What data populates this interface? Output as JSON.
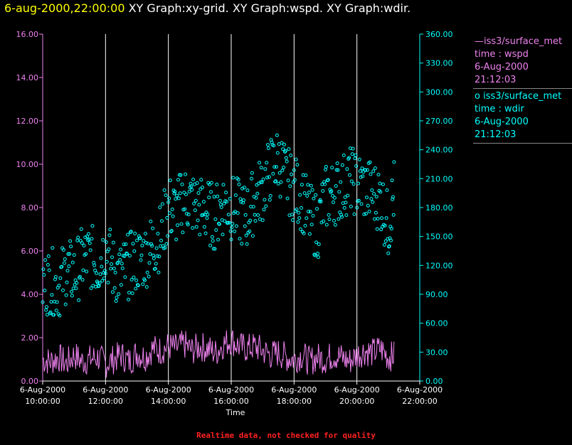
{
  "header": {
    "timestamp": "6-aug-2000,22:00:00",
    "graphs": "XY Graph:xy-grid.  XY Graph:wspd.  XY Graph:wdir."
  },
  "colors": {
    "wspd": "#ee82ee",
    "wdir": "#00ffff",
    "grid": "#ffffff",
    "background": "#000000",
    "title_time": "#ffff00",
    "warning": "#ff2020"
  },
  "legend": {
    "wspd": {
      "symbol": "—",
      "source": "iss3/surface_met",
      "var": "time : wspd",
      "date": "6-Aug-2000",
      "time": "21:12:03"
    },
    "wdir": {
      "symbol": "o",
      "source": "iss3/surface_met",
      "var": "time : wdir",
      "date": "6-Aug-2000",
      "time": "21:12:03"
    }
  },
  "warning": "Realtime data, not checked for quality",
  "chart_data": {
    "type": "line",
    "xlabel": "Time",
    "x_ticks": [
      {
        "date": "6-Aug-2000",
        "time": "10:00:00",
        "hour": 10
      },
      {
        "date": "6-Aug-2000",
        "time": "12:00:00",
        "hour": 12
      },
      {
        "date": "6-Aug-2000",
        "time": "14:00:00",
        "hour": 14
      },
      {
        "date": "6-Aug-2000",
        "time": "16:00:00",
        "hour": 16
      },
      {
        "date": "6-Aug-2000",
        "time": "18:00:00",
        "hour": 18
      },
      {
        "date": "6-Aug-2000",
        "time": "20:00:00",
        "hour": 20
      },
      {
        "date": "6-Aug-2000",
        "time": "22:00:00",
        "hour": 22
      }
    ],
    "xlim": [
      10,
      22
    ],
    "y_left": {
      "lim": [
        0,
        16
      ],
      "ticks": [
        "0.00",
        "2.00",
        "4.00",
        "6.00",
        "8.00",
        "10.00",
        "12.00",
        "14.00",
        "16.00"
      ]
    },
    "y_right": {
      "lim": [
        0,
        360
      ],
      "ticks": [
        "0.00",
        "30.00",
        "60.00",
        "90.00",
        "120.00",
        "150.00",
        "180.00",
        "210.00",
        "240.00",
        "270.00",
        "300.00",
        "330.00",
        "360.00"
      ]
    },
    "grid": "vertical",
    "series": [
      {
        "name": "iss3/surface_met time : wspd",
        "axis": "left",
        "style": "line",
        "x": [
          10.0,
          10.25,
          10.5,
          10.75,
          11.0,
          11.25,
          11.5,
          11.75,
          12.0,
          12.25,
          12.5,
          12.75,
          13.0,
          13.25,
          13.5,
          13.75,
          14.0,
          14.25,
          14.5,
          14.75,
          15.0,
          15.25,
          15.5,
          15.75,
          16.0,
          16.25,
          16.5,
          16.75,
          17.0,
          17.25,
          17.5,
          17.75,
          18.0,
          18.25,
          18.5,
          18.75,
          19.0,
          19.25,
          19.5,
          19.75,
          20.0,
          20.25,
          20.5,
          20.75,
          21.0,
          21.2
        ],
        "y": [
          1.0,
          0.9,
          1.1,
          0.8,
          1.2,
          0.9,
          1.0,
          1.1,
          0.8,
          1.0,
          1.2,
          0.9,
          1.3,
          1.1,
          1.5,
          1.4,
          1.6,
          1.5,
          1.7,
          1.4,
          1.6,
          1.5,
          1.3,
          1.7,
          1.9,
          1.6,
          1.5,
          1.6,
          1.4,
          1.2,
          1.3,
          1.1,
          1.0,
          1.2,
          0.9,
          1.1,
          1.0,
          1.2,
          1.1,
          0.9,
          1.2,
          1.4,
          1.3,
          1.5,
          1.1,
          1.2
        ]
      },
      {
        "name": "iss3/surface_met time : wdir",
        "axis": "right",
        "style": "scatter",
        "x": [
          10.0,
          10.25,
          10.5,
          10.75,
          11.0,
          11.25,
          11.5,
          11.75,
          12.0,
          12.25,
          12.5,
          12.75,
          13.0,
          13.25,
          13.5,
          13.75,
          14.0,
          14.25,
          14.5,
          14.75,
          15.0,
          15.25,
          15.5,
          15.75,
          16.0,
          16.25,
          16.5,
          16.75,
          17.0,
          17.25,
          17.5,
          17.75,
          18.0,
          18.25,
          18.5,
          18.75,
          19.0,
          19.25,
          19.5,
          19.75,
          20.0,
          20.25,
          20.5,
          20.75,
          21.0,
          21.2
        ],
        "y": [
          100,
          105,
          98,
          115,
          110,
          125,
          130,
          120,
          140,
          115,
          110,
          120,
          125,
          130,
          140,
          150,
          180,
          175,
          190,
          185,
          180,
          175,
          170,
          185,
          180,
          175,
          170,
          190,
          200,
          220,
          230,
          210,
          200,
          190,
          170,
          160,
          190,
          195,
          200,
          210,
          205,
          200,
          195,
          190,
          160,
          200
        ],
        "spread": 35
      }
    ]
  }
}
